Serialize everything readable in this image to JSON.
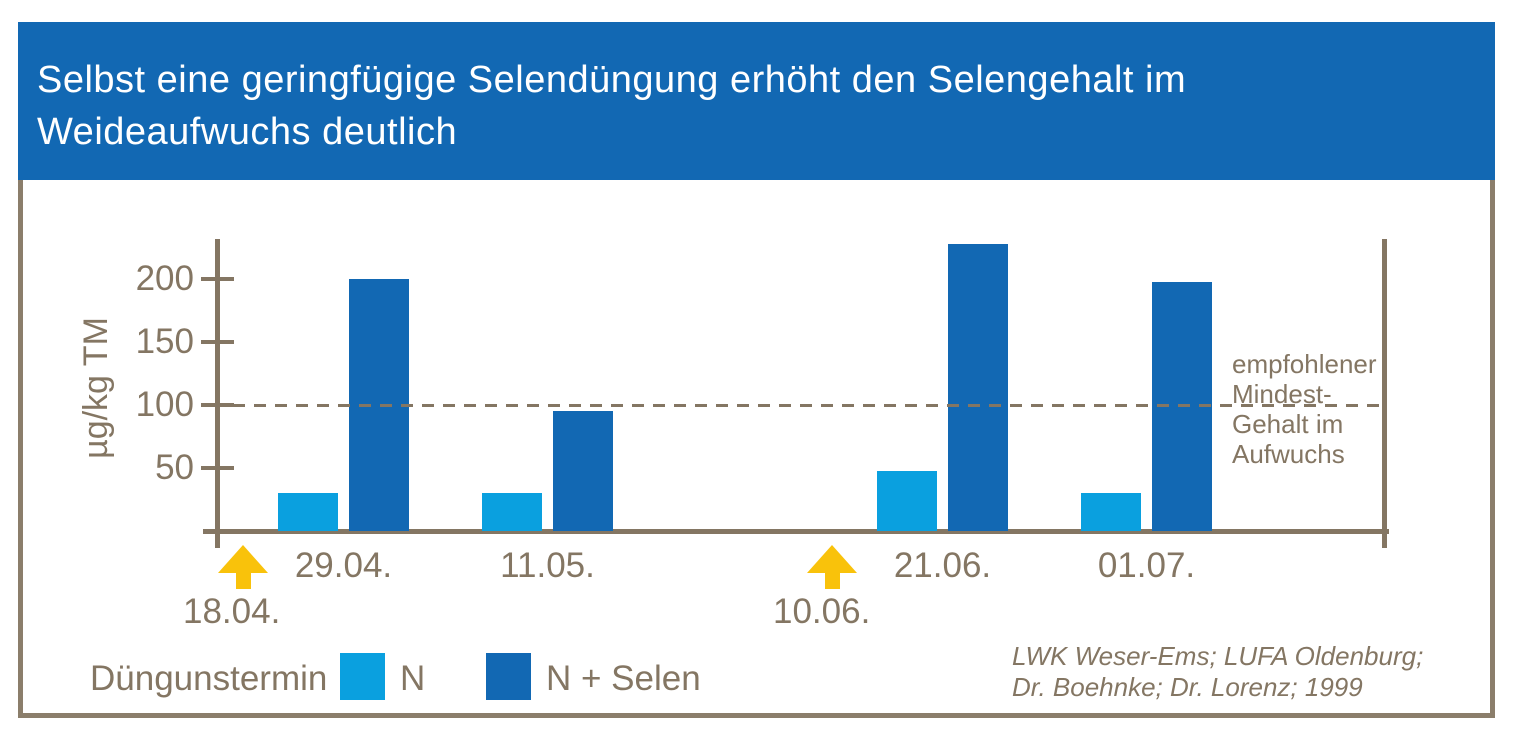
{
  "header": {
    "title": "Selbst eine geringfügige Selendüngung erhöht den Selengehalt im\nWeideaufwuchs deutlich"
  },
  "chart_data": {
    "type": "bar",
    "title": "Selbst eine geringfügige Selendüngung erhöht den Selengehalt im Weideaufwuchs deutlich",
    "ylabel": "µg/kg TM",
    "ylim": [
      0,
      240
    ],
    "yticks": [
      50,
      100,
      150,
      200
    ],
    "grid": false,
    "categories": [
      "29.04.",
      "11.05.",
      "21.06.",
      "01.07."
    ],
    "series": [
      {
        "name": "N",
        "color": "#0aa0df",
        "values": [
          30,
          30,
          48,
          30
        ]
      },
      {
        "name": "N + Selen",
        "color": "#1268b3",
        "values": [
          200,
          95,
          228,
          198
        ]
      }
    ],
    "reference_line": {
      "value": 100,
      "style": "dashed",
      "label": "empfohlener\nMindest-\nGehalt im\nAufwuchs"
    },
    "fertilization_arrows": [
      {
        "date": "18.04."
      },
      {
        "date": "10.06."
      }
    ],
    "legend_position": "bottom-left"
  },
  "legend": {
    "label": "Düngunstermin",
    "items": [
      {
        "label": "N",
        "color": "#0aa0df"
      },
      {
        "label": "N + Selen",
        "color": "#1268b3"
      }
    ]
  },
  "source": {
    "text": "LWK Weser-Ems; LUFA Oldenburg;\nDr. Boehnke; Dr. Lorenz; 1999"
  },
  "colors": {
    "banner_blue": "#1268b3",
    "bar_light_blue": "#0aa0df",
    "bar_dark_blue": "#1268b3",
    "taupe": "#847663",
    "frame_brown": "#8b7e6b",
    "arrow_gold": "#f9c20b"
  }
}
